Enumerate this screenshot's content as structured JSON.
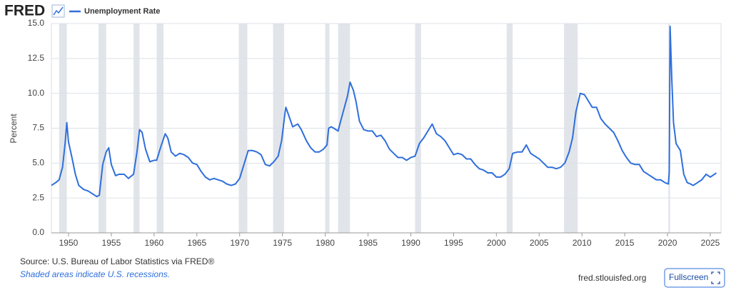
{
  "header": {
    "logo": "FRED"
  },
  "chart_data": {
    "type": "line",
    "y_label": "Percent",
    "x": [
      1948.0,
      1948.5,
      1948.9,
      1949.3,
      1949.6,
      1949.8,
      1950.0,
      1950.4,
      1950.8,
      1951.2,
      1951.8,
      1952.3,
      1952.8,
      1953.3,
      1953.6,
      1954.0,
      1954.4,
      1954.7,
      1955.0,
      1955.5,
      1955.9,
      1956.5,
      1957.0,
      1957.6,
      1958.0,
      1958.3,
      1958.6,
      1959.0,
      1959.5,
      1960.0,
      1960.3,
      1960.8,
      1961.3,
      1961.6,
      1962.0,
      1962.5,
      1963.0,
      1963.5,
      1964.0,
      1964.5,
      1965.0,
      1965.5,
      1966.0,
      1966.5,
      1967.0,
      1967.5,
      1968.0,
      1968.5,
      1969.0,
      1969.5,
      1970.0,
      1970.5,
      1971.0,
      1971.5,
      1972.0,
      1972.5,
      1973.0,
      1973.5,
      1974.0,
      1974.5,
      1974.9,
      1975.3,
      1975.4,
      1975.8,
      1976.2,
      1976.8,
      1977.2,
      1977.8,
      1978.3,
      1978.8,
      1979.3,
      1979.8,
      1980.2,
      1980.4,
      1980.7,
      1981.0,
      1981.5,
      1981.8,
      1982.2,
      1982.6,
      1982.9,
      1983.3,
      1983.6,
      1984.0,
      1984.5,
      1985.0,
      1985.5,
      1986.0,
      1986.5,
      1987.0,
      1987.5,
      1988.0,
      1988.5,
      1989.0,
      1989.5,
      1990.0,
      1990.5,
      1991.0,
      1991.5,
      1992.0,
      1992.5,
      1993.0,
      1993.5,
      1994.0,
      1994.5,
      1995.0,
      1995.5,
      1996.0,
      1996.5,
      1997.0,
      1997.5,
      1998.0,
      1998.5,
      1999.0,
      1999.5,
      2000.0,
      2000.5,
      2001.0,
      2001.5,
      2001.9,
      2002.5,
      2003.0,
      2003.5,
      2004.0,
      2004.5,
      2005.0,
      2005.5,
      2006.0,
      2006.5,
      2007.0,
      2007.5,
      2008.0,
      2008.5,
      2008.9,
      2009.3,
      2009.8,
      2010.3,
      2010.8,
      2011.2,
      2011.7,
      2012.2,
      2012.7,
      2013.2,
      2013.7,
      2014.2,
      2014.7,
      2015.2,
      2015.7,
      2016.2,
      2016.7,
      2017.2,
      2017.7,
      2018.2,
      2018.7,
      2019.2,
      2019.7,
      2020.1,
      2020.2,
      2020.3,
      2020.5,
      2020.7,
      2021.0,
      2021.5,
      2021.9,
      2022.3,
      2022.7,
      2023.0,
      2023.5,
      2024.0,
      2024.5,
      2025.0,
      2025.5,
      2025.7
    ],
    "series": [
      {
        "name": "Unemployment Rate",
        "color": "#2f6fdc",
        "values": [
          3.4,
          3.6,
          3.8,
          4.7,
          6.4,
          7.9,
          6.5,
          5.4,
          4.2,
          3.4,
          3.1,
          3.0,
          2.8,
          2.6,
          2.7,
          4.9,
          5.8,
          6.1,
          4.9,
          4.1,
          4.2,
          4.2,
          3.9,
          4.2,
          5.8,
          7.4,
          7.2,
          6.0,
          5.1,
          5.2,
          5.2,
          6.2,
          7.1,
          6.8,
          5.8,
          5.5,
          5.7,
          5.6,
          5.4,
          5.0,
          4.9,
          4.4,
          4.0,
          3.8,
          3.9,
          3.8,
          3.7,
          3.5,
          3.4,
          3.5,
          3.9,
          4.9,
          5.9,
          5.9,
          5.8,
          5.6,
          4.9,
          4.8,
          5.1,
          5.5,
          6.6,
          8.6,
          9.0,
          8.3,
          7.6,
          7.8,
          7.4,
          6.6,
          6.1,
          5.8,
          5.8,
          6.0,
          6.3,
          7.5,
          7.6,
          7.5,
          7.3,
          8.0,
          8.9,
          9.8,
          10.8,
          10.2,
          9.4,
          8.0,
          7.4,
          7.3,
          7.3,
          6.9,
          7.0,
          6.6,
          6.0,
          5.7,
          5.4,
          5.4,
          5.2,
          5.4,
          5.5,
          6.4,
          6.8,
          7.3,
          7.8,
          7.1,
          6.9,
          6.6,
          6.1,
          5.6,
          5.7,
          5.6,
          5.3,
          5.3,
          4.9,
          4.6,
          4.5,
          4.3,
          4.3,
          4.0,
          4.0,
          4.2,
          4.6,
          5.7,
          5.8,
          5.8,
          6.3,
          5.7,
          5.5,
          5.3,
          5.0,
          4.7,
          4.7,
          4.6,
          4.7,
          5.0,
          5.8,
          6.8,
          8.7,
          10.0,
          9.9,
          9.4,
          9.0,
          9.0,
          8.2,
          7.8,
          7.5,
          7.2,
          6.6,
          5.9,
          5.4,
          5.0,
          4.9,
          4.9,
          4.4,
          4.2,
          4.0,
          3.8,
          3.8,
          3.6,
          3.5,
          4.4,
          14.8,
          11.0,
          7.9,
          6.4,
          5.9,
          4.2,
          3.6,
          3.5,
          3.4,
          3.6,
          3.8,
          4.2,
          4.0,
          4.2,
          4.3
        ]
      }
    ],
    "recessions": [
      [
        1948.9,
        1949.8
      ],
      [
        1953.5,
        1954.4
      ],
      [
        1957.6,
        1958.3
      ],
      [
        1960.3,
        1961.1
      ],
      [
        1969.9,
        1970.9
      ],
      [
        1973.9,
        1975.2
      ],
      [
        1980.0,
        1980.5
      ],
      [
        1981.5,
        1982.9
      ],
      [
        1990.5,
        1991.2
      ],
      [
        2001.2,
        2001.9
      ],
      [
        2007.9,
        2009.5
      ],
      [
        2020.1,
        2020.3
      ]
    ],
    "recession_color": "#e1e5ea",
    "xlim": [
      1948,
      2026.25
    ],
    "xticks": [
      1950,
      1955,
      1960,
      1965,
      1970,
      1975,
      1980,
      1985,
      1990,
      1995,
      2000,
      2005,
      2010,
      2015,
      2020,
      2025
    ],
    "ylim": [
      0,
      15
    ],
    "yticks": [
      {
        "value": 0,
        "label": "0.0"
      },
      2.5,
      {
        "value": 5,
        "label": "5.0"
      },
      7.5,
      {
        "value": 10,
        "label": "10.0"
      },
      12.5,
      {
        "value": 15,
        "label": "15.0"
      }
    ],
    "grid": true
  },
  "footer": {
    "source": "Source: U.S. Bureau of Labor Statistics via FRED®",
    "note": "Shaded areas indicate U.S. recessions.",
    "site": "fred.stlouisfed.org",
    "button": "Fullscreen"
  }
}
